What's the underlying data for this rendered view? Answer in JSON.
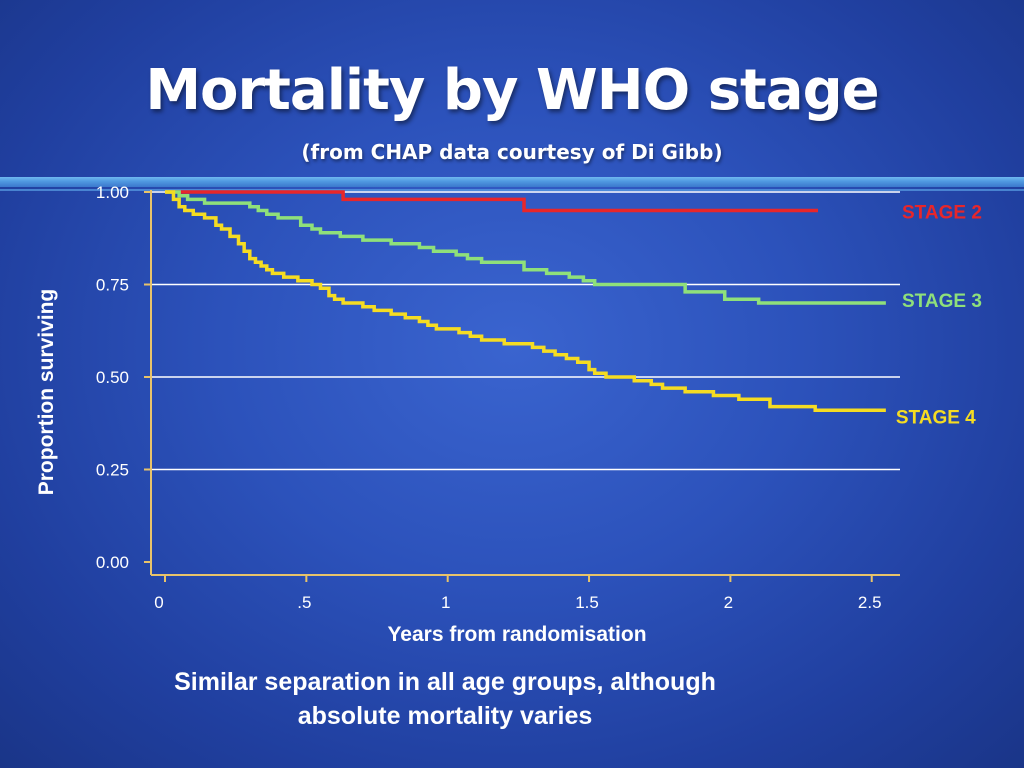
{
  "slide": {
    "title": "Mortality by WHO stage",
    "subtitle": "(from CHAP data courtesy of Di Gibb)",
    "caption_line1": "Similar separation in all age groups, although",
    "caption_line2": "absolute mortality varies"
  },
  "colors": {
    "axis": "#e8c36a",
    "grid": "#ffffff",
    "text": "#ffffff"
  },
  "chart_data": {
    "type": "line",
    "title": "",
    "xlabel": "Years from randomisation",
    "ylabel": "Proportion surviving",
    "xlim": [
      0,
      2.6
    ],
    "ylim": [
      0,
      1
    ],
    "x_ticks": [
      0,
      0.5,
      1,
      1.5,
      2,
      2.5
    ],
    "x_tick_labels": [
      "0",
      ".5",
      "1",
      "1.5",
      "2",
      "2.5"
    ],
    "y_ticks": [
      0,
      0.25,
      0.5,
      0.75,
      1
    ],
    "y_tick_labels": [
      "0.00",
      "0.25",
      "0.50",
      "0.75",
      "1.00"
    ],
    "grid": "horizontal",
    "legend": "right, labels at line ends",
    "step": true,
    "series": [
      {
        "name": "STAGE 2",
        "color": "#e8262a",
        "x": [
          0,
          0.63,
          1.27,
          2.31
        ],
        "y": [
          1.0,
          0.98,
          0.95,
          0.95
        ]
      },
      {
        "name": "STAGE 3",
        "color": "#8fe07a",
        "x": [
          0,
          0.05,
          0.08,
          0.14,
          0.22,
          0.3,
          0.33,
          0.36,
          0.4,
          0.48,
          0.52,
          0.55,
          0.58,
          0.62,
          0.64,
          0.7,
          0.74,
          0.8,
          0.84,
          0.9,
          0.95,
          1.0,
          1.03,
          1.05,
          1.07,
          1.12,
          1.22,
          1.27,
          1.31,
          1.35,
          1.38,
          1.43,
          1.48,
          1.52,
          1.58,
          1.68,
          1.74,
          1.84,
          1.98,
          2.1,
          2.4,
          2.55
        ],
        "y": [
          1.0,
          0.99,
          0.98,
          0.97,
          0.97,
          0.96,
          0.95,
          0.94,
          0.93,
          0.91,
          0.9,
          0.89,
          0.89,
          0.88,
          0.88,
          0.87,
          0.87,
          0.86,
          0.86,
          0.85,
          0.84,
          0.84,
          0.83,
          0.83,
          0.82,
          0.81,
          0.81,
          0.79,
          0.79,
          0.78,
          0.78,
          0.77,
          0.76,
          0.75,
          0.75,
          0.75,
          0.75,
          0.73,
          0.71,
          0.7,
          0.7,
          0.7
        ]
      },
      {
        "name": "STAGE 4",
        "color": "#f5dc22",
        "x": [
          0,
          0.03,
          0.05,
          0.07,
          0.1,
          0.14,
          0.18,
          0.2,
          0.23,
          0.26,
          0.28,
          0.3,
          0.32,
          0.34,
          0.36,
          0.38,
          0.4,
          0.42,
          0.44,
          0.47,
          0.52,
          0.55,
          0.58,
          0.6,
          0.63,
          0.66,
          0.7,
          0.74,
          0.8,
          0.85,
          0.9,
          0.93,
          0.96,
          1.0,
          1.04,
          1.08,
          1.12,
          1.16,
          1.2,
          1.27,
          1.3,
          1.34,
          1.38,
          1.42,
          1.46,
          1.5,
          1.52,
          1.56,
          1.6,
          1.66,
          1.72,
          1.76,
          1.84,
          1.94,
          2.03,
          2.14,
          2.3,
          2.5,
          2.55
        ],
        "y": [
          1.0,
          0.98,
          0.96,
          0.95,
          0.94,
          0.93,
          0.91,
          0.9,
          0.88,
          0.86,
          0.84,
          0.82,
          0.81,
          0.8,
          0.79,
          0.78,
          0.78,
          0.77,
          0.77,
          0.76,
          0.75,
          0.74,
          0.72,
          0.71,
          0.7,
          0.7,
          0.69,
          0.68,
          0.67,
          0.66,
          0.65,
          0.64,
          0.63,
          0.63,
          0.62,
          0.61,
          0.6,
          0.6,
          0.59,
          0.59,
          0.58,
          0.57,
          0.56,
          0.55,
          0.54,
          0.52,
          0.51,
          0.5,
          0.5,
          0.49,
          0.48,
          0.47,
          0.46,
          0.45,
          0.44,
          0.42,
          0.41,
          0.41,
          0.41
        ]
      }
    ]
  }
}
